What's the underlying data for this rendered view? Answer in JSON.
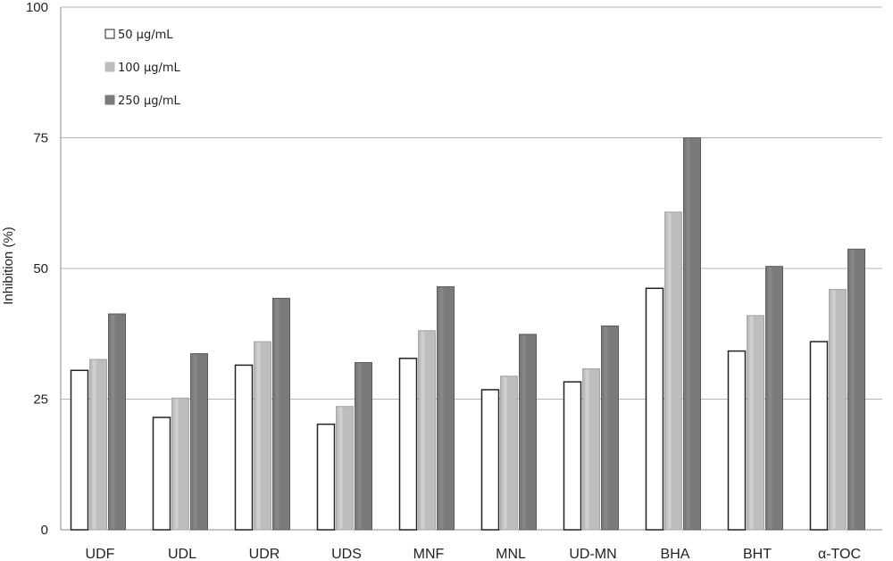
{
  "chart_data": {
    "type": "bar",
    "ylabel": "Inhibition (%)",
    "xlabel": "",
    "ylim": [
      0,
      100
    ],
    "y_ticks": [
      0,
      25,
      50,
      75,
      100
    ],
    "grid": "horizontal",
    "legend_position": "top-left",
    "categories": [
      "UDF",
      "UDL",
      "UDR",
      "UDS",
      "MNF",
      "MNL",
      "UD-MN",
      "BHA",
      "BHT",
      "α-TOC"
    ],
    "series": [
      {
        "name": "50 µg/mL",
        "color": "#ffffff",
        "values": [
          30.5,
          21.5,
          31.5,
          20.2,
          32.8,
          26.8,
          28.3,
          46.2,
          34.2,
          36.0
        ]
      },
      {
        "name": "100 µg/mL",
        "color": "#bdbdbd",
        "values": [
          32.6,
          25.2,
          36.0,
          23.6,
          38.1,
          29.4,
          30.8,
          60.8,
          41.0,
          46.0
        ]
      },
      {
        "name": "250 µg/mL",
        "color": "#7a7a7a",
        "values": [
          41.3,
          33.7,
          44.3,
          32.0,
          46.5,
          37.4,
          39.0,
          75.0,
          50.4,
          53.7
        ]
      }
    ]
  }
}
